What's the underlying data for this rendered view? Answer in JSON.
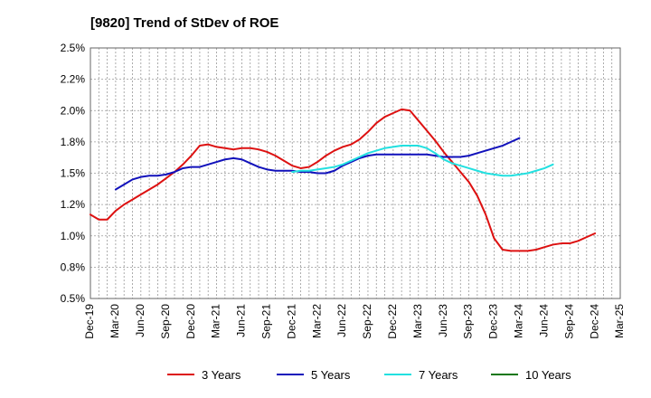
{
  "chart_data": {
    "type": "line",
    "title": "[9820]  Trend of StDev of ROE",
    "xlabel": "",
    "ylabel": "",
    "x_tick_labels": [
      "Dec-19",
      "Mar-20",
      "Jun-20",
      "Sep-20",
      "Dec-20",
      "Mar-21",
      "Jun-21",
      "Sep-21",
      "Dec-21",
      "Mar-22",
      "Jun-22",
      "Sep-22",
      "Dec-22",
      "Mar-23",
      "Jun-23",
      "Sep-23",
      "Dec-23",
      "Mar-24",
      "Jun-24",
      "Sep-24",
      "Dec-24",
      "Mar-25"
    ],
    "y_tick_labels": [
      "0.5%",
      "0.8%",
      "1.0%",
      "1.2%",
      "1.5%",
      "1.8%",
      "2.0%",
      "2.2%",
      "2.5%"
    ],
    "ylim": [
      0.5,
      2.5
    ],
    "y_ticks": [
      0.5,
      0.75,
      1.0,
      1.25,
      1.5,
      1.75,
      2.0,
      2.25,
      2.5
    ],
    "grid": true,
    "legend_position": "bottom",
    "series": [
      {
        "name": "3 Years",
        "color": "#dd1111",
        "start_index": 0,
        "values": [
          1.17,
          1.13,
          1.13,
          1.2,
          1.25,
          1.29,
          1.33,
          1.37,
          1.41,
          1.46,
          1.51,
          1.57,
          1.64,
          1.72,
          1.73,
          1.71,
          1.7,
          1.69,
          1.7,
          1.7,
          1.69,
          1.67,
          1.64,
          1.6,
          1.56,
          1.54,
          1.55,
          1.59,
          1.64,
          1.68,
          1.71,
          1.73,
          1.77,
          1.83,
          1.9,
          1.95,
          1.98,
          2.01,
          2.0,
          1.92,
          1.84,
          1.76,
          1.67,
          1.59,
          1.51,
          1.43,
          1.32,
          1.17,
          0.98,
          0.89,
          0.88,
          0.88,
          0.88,
          0.89,
          0.91,
          0.93,
          0.94,
          0.94,
          0.96,
          0.99,
          1.02
        ]
      },
      {
        "name": "5 Years",
        "color": "#1111bb",
        "start_index": 3,
        "values": [
          1.37,
          1.41,
          1.45,
          1.47,
          1.48,
          1.48,
          1.49,
          1.51,
          1.54,
          1.55,
          1.55,
          1.57,
          1.59,
          1.61,
          1.62,
          1.61,
          1.58,
          1.55,
          1.53,
          1.52,
          1.52,
          1.52,
          1.51,
          1.51,
          1.5,
          1.5,
          1.52,
          1.56,
          1.59,
          1.62,
          1.64,
          1.65,
          1.65,
          1.65,
          1.65,
          1.65,
          1.65,
          1.65,
          1.64,
          1.63,
          1.63,
          1.63,
          1.64,
          1.66,
          1.68,
          1.7,
          1.72,
          1.75,
          1.78
        ]
      },
      {
        "name": "7 Years",
        "color": "#22e0e0",
        "start_index": 24,
        "values": [
          1.51,
          1.52,
          1.52,
          1.53,
          1.54,
          1.55,
          1.57,
          1.6,
          1.63,
          1.66,
          1.68,
          1.7,
          1.71,
          1.72,
          1.72,
          1.72,
          1.7,
          1.66,
          1.61,
          1.58,
          1.56,
          1.54,
          1.52,
          1.5,
          1.49,
          1.48,
          1.48,
          1.49,
          1.5,
          1.52,
          1.54,
          1.57
        ]
      },
      {
        "name": "10 Years",
        "color": "#117711",
        "start_index": 0,
        "values": []
      }
    ]
  }
}
